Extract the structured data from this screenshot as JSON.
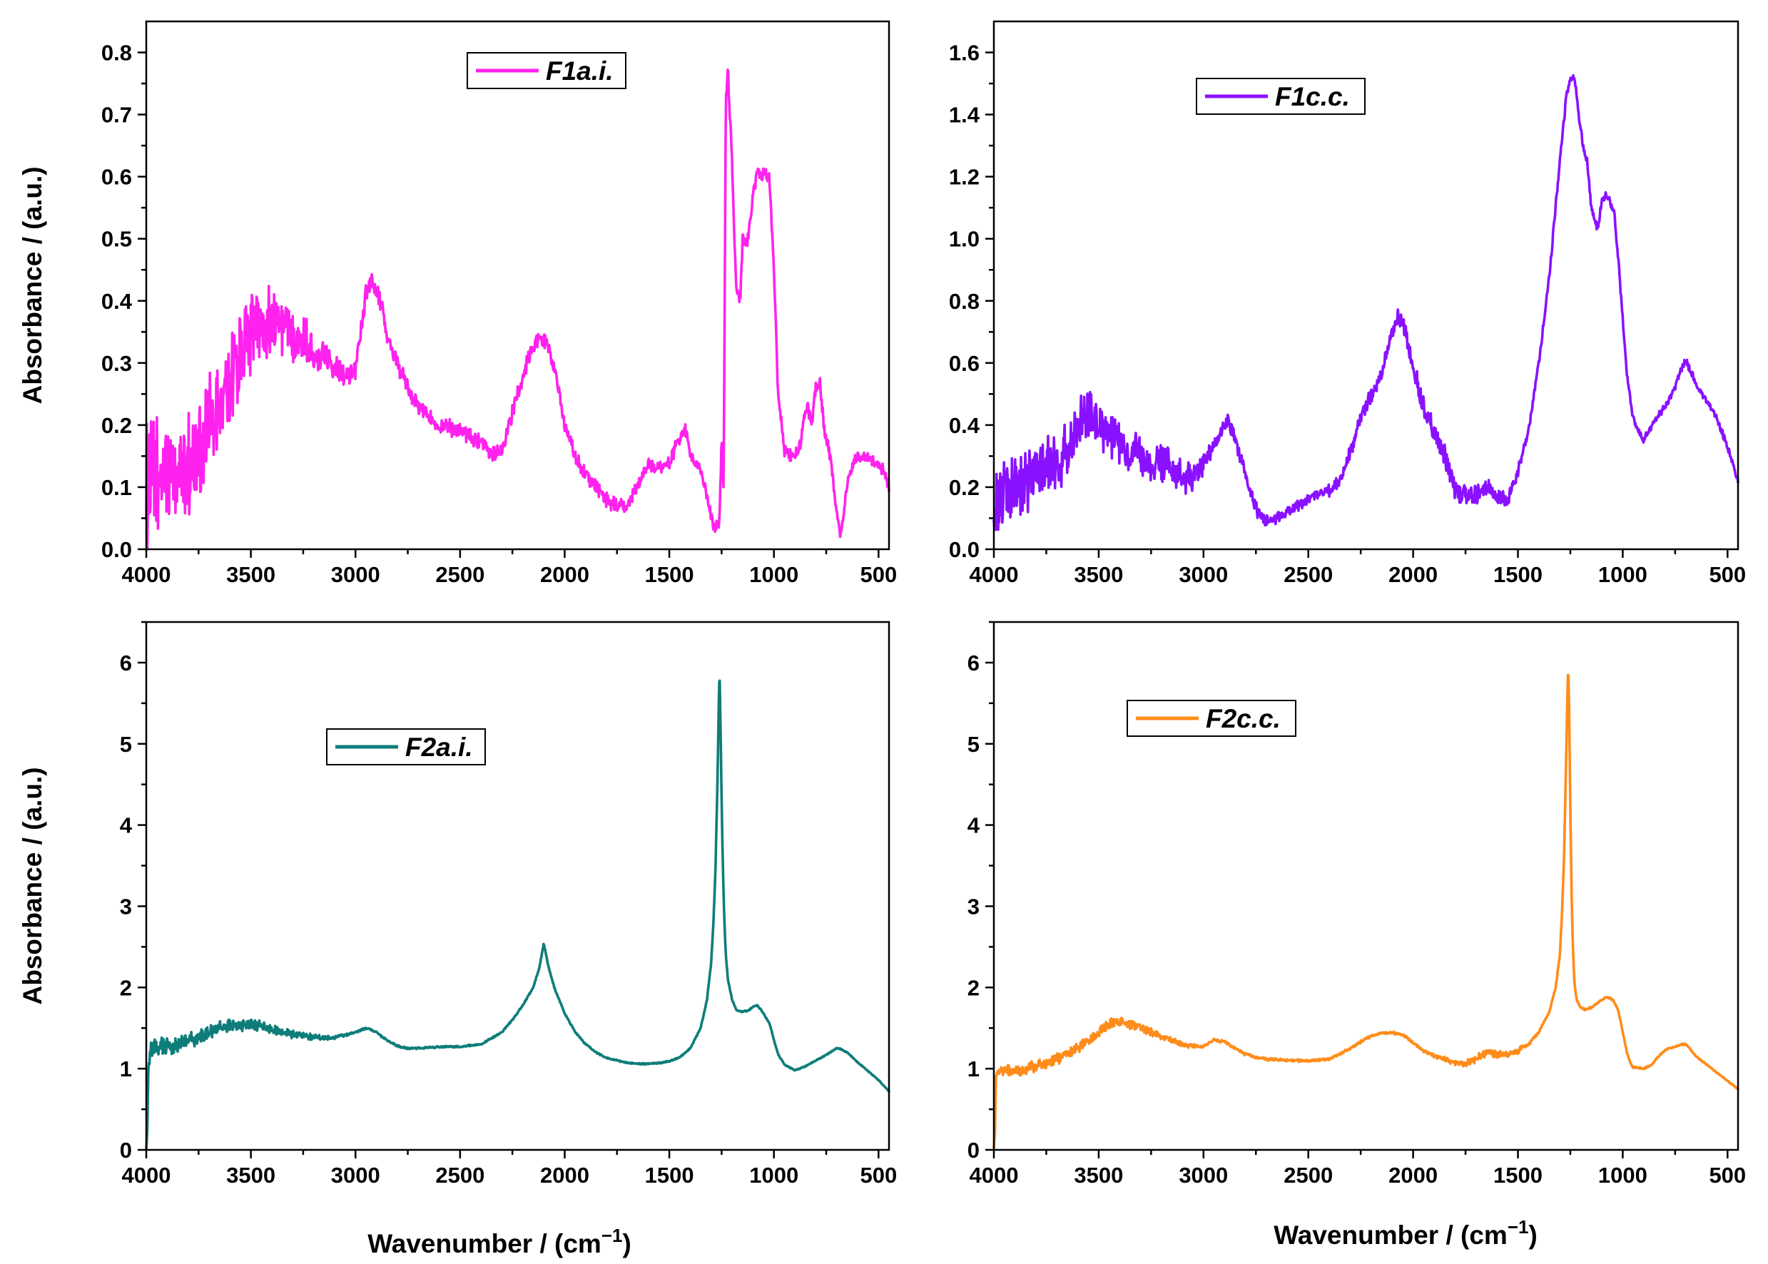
{
  "figure": {
    "shared_xlabel": "Wavenumber / (cm",
    "shared_xlabel_sup": "−1",
    "shared_xlabel_close": ")"
  },
  "chart_data": [
    {
      "type": "line",
      "legend": "F1a.i.",
      "legend_position": "top-center",
      "color": "#ff22ee",
      "ylabel": "Absorbance / (a.u.)",
      "xlabel": "",
      "xlim": [
        4000,
        450
      ],
      "ylim": [
        0,
        0.85
      ],
      "xticks": [
        4000,
        3500,
        3000,
        2500,
        2000,
        1500,
        1000,
        500
      ],
      "yticks": [
        0.0,
        0.1,
        0.2,
        0.3,
        0.4,
        0.5,
        0.6,
        0.7,
        0.8
      ],
      "ytick_labels": [
        "0.0",
        "0.1",
        "0.2",
        "0.3",
        "0.4",
        "0.5",
        "0.6",
        "0.7",
        "0.8"
      ],
      "noise": [
        [
          4000,
          0.08
        ],
        [
          3600,
          0.06
        ],
        [
          3200,
          0.025
        ],
        [
          3000,
          0.012
        ],
        [
          2400,
          0.01
        ],
        [
          450,
          0.008
        ]
      ],
      "series": [
        {
          "name": "F1a.i.",
          "x": [
            4000,
            3950,
            3900,
            3850,
            3800,
            3750,
            3700,
            3650,
            3600,
            3550,
            3500,
            3450,
            3400,
            3350,
            3300,
            3250,
            3200,
            3150,
            3100,
            3050,
            3000,
            2950,
            2920,
            2880,
            2850,
            2800,
            2750,
            2700,
            2600,
            2500,
            2400,
            2350,
            2300,
            2250,
            2200,
            2150,
            2120,
            2080,
            2050,
            2000,
            1950,
            1900,
            1850,
            1800,
            1750,
            1700,
            1650,
            1600,
            1550,
            1500,
            1450,
            1420,
            1400,
            1350,
            1300,
            1280,
            1260,
            1250,
            1240,
            1230,
            1220,
            1200,
            1180,
            1160,
            1150,
            1130,
            1100,
            1080,
            1060,
            1040,
            1020,
            1000,
            980,
            950,
            920,
            900,
            880,
            860,
            840,
            820,
            800,
            780,
            760,
            740,
            720,
            700,
            680,
            660,
            640,
            620,
            600,
            560,
            520,
            480,
            450
          ],
          "y": [
            0.1,
            0.11,
            0.12,
            0.12,
            0.13,
            0.16,
            0.19,
            0.22,
            0.27,
            0.32,
            0.35,
            0.36,
            0.37,
            0.36,
            0.35,
            0.34,
            0.32,
            0.31,
            0.3,
            0.28,
            0.29,
            0.41,
            0.43,
            0.4,
            0.34,
            0.3,
            0.26,
            0.23,
            0.2,
            0.19,
            0.17,
            0.15,
            0.16,
            0.22,
            0.28,
            0.33,
            0.34,
            0.33,
            0.29,
            0.2,
            0.15,
            0.12,
            0.1,
            0.08,
            0.07,
            0.07,
            0.1,
            0.14,
            0.13,
            0.14,
            0.18,
            0.19,
            0.15,
            0.13,
            0.05,
            0.03,
            0.05,
            0.18,
            0.1,
            0.72,
            0.77,
            0.62,
            0.42,
            0.4,
            0.5,
            0.49,
            0.57,
            0.61,
            0.6,
            0.61,
            0.59,
            0.45,
            0.25,
            0.16,
            0.15,
            0.15,
            0.16,
            0.2,
            0.23,
            0.2,
            0.26,
            0.27,
            0.19,
            0.17,
            0.12,
            0.06,
            0.02,
            0.08,
            0.12,
            0.14,
            0.15,
            0.15,
            0.14,
            0.13,
            0.1
          ]
        }
      ]
    },
    {
      "type": "line",
      "legend": "F1c.c.",
      "legend_position": "top-center",
      "color": "#8a11ff",
      "ylabel": "",
      "xlabel": "",
      "xlim": [
        4000,
        450
      ],
      "ylim": [
        0,
        1.7
      ],
      "xticks": [
        4000,
        3500,
        3000,
        2500,
        2000,
        1500,
        1000,
        500
      ],
      "yticks": [
        0.0,
        0.2,
        0.4,
        0.6,
        0.8,
        1.0,
        1.2,
        1.4,
        1.6
      ],
      "ytick_labels": [
        "0.0",
        "0.2",
        "0.4",
        "0.6",
        "0.8",
        "1.0",
        "1.2",
        "1.4",
        "1.6"
      ],
      "noise": [
        [
          4000,
          0.09
        ],
        [
          3550,
          0.07
        ],
        [
          3200,
          0.05
        ],
        [
          2950,
          0.02
        ],
        [
          2500,
          0.012
        ],
        [
          1800,
          0.03
        ],
        [
          1550,
          0.02
        ],
        [
          1450,
          0.01
        ],
        [
          450,
          0.008
        ]
      ],
      "series": [
        {
          "name": "F1c.c.",
          "x": [
            4000,
            3950,
            3900,
            3850,
            3800,
            3750,
            3700,
            3650,
            3600,
            3550,
            3500,
            3450,
            3400,
            3350,
            3300,
            3250,
            3200,
            3150,
            3100,
            3050,
            3000,
            2950,
            2920,
            2880,
            2850,
            2800,
            2750,
            2700,
            2650,
            2600,
            2550,
            2500,
            2450,
            2400,
            2350,
            2300,
            2250,
            2200,
            2150,
            2100,
            2070,
            2050,
            2000,
            1950,
            1900,
            1850,
            1800,
            1750,
            1700,
            1650,
            1600,
            1550,
            1500,
            1450,
            1400,
            1350,
            1300,
            1270,
            1250,
            1230,
            1210,
            1190,
            1170,
            1150,
            1120,
            1100,
            1080,
            1060,
            1040,
            1020,
            1000,
            980,
            950,
            920,
            900,
            880,
            850,
            800,
            750,
            720,
            700,
            680,
            650,
            600,
            550,
            500,
            450
          ],
          "y": [
            0.15,
            0.17,
            0.19,
            0.22,
            0.25,
            0.26,
            0.28,
            0.33,
            0.4,
            0.42,
            0.41,
            0.38,
            0.35,
            0.31,
            0.29,
            0.27,
            0.27,
            0.25,
            0.23,
            0.23,
            0.27,
            0.33,
            0.37,
            0.42,
            0.35,
            0.24,
            0.13,
            0.09,
            0.1,
            0.12,
            0.14,
            0.16,
            0.18,
            0.19,
            0.22,
            0.31,
            0.42,
            0.5,
            0.57,
            0.7,
            0.75,
            0.73,
            0.59,
            0.45,
            0.38,
            0.3,
            0.2,
            0.17,
            0.17,
            0.2,
            0.17,
            0.16,
            0.25,
            0.38,
            0.6,
            0.88,
            1.25,
            1.45,
            1.52,
            1.52,
            1.4,
            1.3,
            1.25,
            1.1,
            1.03,
            1.12,
            1.14,
            1.12,
            1.08,
            0.92,
            0.74,
            0.56,
            0.42,
            0.37,
            0.35,
            0.38,
            0.41,
            0.46,
            0.52,
            0.58,
            0.61,
            0.58,
            0.53,
            0.48,
            0.42,
            0.33,
            0.22
          ]
        }
      ]
    },
    {
      "type": "line",
      "legend": "F2a.i.",
      "legend_position": "top-left",
      "color": "#0e7d7a",
      "ylabel": "Absorbance / (a.u.)",
      "xlabel": "",
      "xlim": [
        4000,
        450
      ],
      "ylim": [
        0,
        6.5
      ],
      "xticks": [
        4000,
        3500,
        3000,
        2500,
        2000,
        1500,
        1000,
        500
      ],
      "yticks": [
        0,
        1,
        2,
        3,
        4,
        5,
        6
      ],
      "ytick_labels": [
        "0",
        "1",
        "2",
        "3",
        "4",
        "5",
        "6"
      ],
      "noise": [
        [
          4000,
          0.1
        ],
        [
          3700,
          0.07
        ],
        [
          3400,
          0.05
        ],
        [
          3200,
          0.03
        ],
        [
          3000,
          0.01
        ],
        [
          2400,
          0.008
        ],
        [
          450,
          0.005
        ]
      ],
      "series": [
        {
          "name": "F2a.i.",
          "x": [
            4000,
            3995,
            3990,
            3980,
            3950,
            3900,
            3850,
            3800,
            3750,
            3700,
            3650,
            3600,
            3550,
            3500,
            3450,
            3400,
            3300,
            3200,
            3100,
            3000,
            2950,
            2900,
            2850,
            2800,
            2750,
            2700,
            2600,
            2500,
            2400,
            2300,
            2250,
            2200,
            2150,
            2120,
            2100,
            2080,
            2050,
            2000,
            1950,
            1900,
            1850,
            1800,
            1750,
            1700,
            1650,
            1600,
            1550,
            1500,
            1450,
            1400,
            1350,
            1320,
            1300,
            1290,
            1280,
            1270,
            1265,
            1260,
            1255,
            1250,
            1245,
            1240,
            1235,
            1230,
            1220,
            1200,
            1180,
            1150,
            1120,
            1100,
            1080,
            1060,
            1050,
            1020,
            1000,
            980,
            950,
            900,
            850,
            800,
            750,
            720,
            700,
            680,
            650,
            600,
            550,
            500,
            450
          ],
          "y": [
            0.0,
            0.3,
            1.1,
            1.2,
            1.25,
            1.28,
            1.3,
            1.33,
            1.38,
            1.45,
            1.5,
            1.52,
            1.52,
            1.55,
            1.52,
            1.48,
            1.42,
            1.38,
            1.38,
            1.45,
            1.5,
            1.45,
            1.35,
            1.28,
            1.25,
            1.25,
            1.27,
            1.27,
            1.3,
            1.45,
            1.6,
            1.78,
            2.0,
            2.25,
            2.55,
            2.28,
            2.0,
            1.68,
            1.45,
            1.3,
            1.2,
            1.13,
            1.1,
            1.07,
            1.06,
            1.06,
            1.07,
            1.09,
            1.14,
            1.25,
            1.5,
            1.85,
            2.3,
            2.75,
            3.4,
            4.5,
            5.3,
            5.95,
            5.2,
            4.3,
            3.6,
            3.1,
            2.7,
            2.4,
            2.1,
            1.85,
            1.72,
            1.7,
            1.72,
            1.76,
            1.78,
            1.72,
            1.68,
            1.55,
            1.35,
            1.18,
            1.05,
            0.98,
            1.03,
            1.1,
            1.17,
            1.22,
            1.25,
            1.24,
            1.2,
            1.08,
            0.97,
            0.86,
            0.72
          ]
        }
      ]
    },
    {
      "type": "line",
      "legend": "F2c.c.",
      "legend_position": "top-center",
      "color": "#ff8c1a",
      "ylabel": "",
      "xlabel": "",
      "xlim": [
        4000,
        450
      ],
      "ylim": [
        0,
        6.5
      ],
      "xticks": [
        4000,
        3500,
        3000,
        2500,
        2000,
        1500,
        1000,
        500
      ],
      "yticks": [
        0,
        1,
        2,
        3,
        4,
        5,
        6
      ],
      "ytick_labels": [
        "0",
        "1",
        "2",
        "3",
        "4",
        "5",
        "6"
      ],
      "noise": [
        [
          4000,
          0.05
        ],
        [
          3600,
          0.06
        ],
        [
          3300,
          0.04
        ],
        [
          3000,
          0.015
        ],
        [
          2000,
          0.01
        ],
        [
          1700,
          0.04
        ],
        [
          1500,
          0.03
        ],
        [
          1400,
          0.01
        ],
        [
          450,
          0.006
        ]
      ],
      "series": [
        {
          "name": "F2c.c.",
          "x": [
            4000,
            3995,
            3990,
            3980,
            3950,
            3900,
            3850,
            3800,
            3750,
            3700,
            3650,
            3600,
            3550,
            3500,
            3450,
            3400,
            3350,
            3300,
            3250,
            3200,
            3150,
            3100,
            3050,
            3000,
            2950,
            2900,
            2850,
            2800,
            2750,
            2700,
            2600,
            2500,
            2400,
            2350,
            2300,
            2250,
            2200,
            2150,
            2100,
            2050,
            2000,
            1950,
            1900,
            1850,
            1800,
            1750,
            1700,
            1650,
            1600,
            1550,
            1500,
            1450,
            1400,
            1350,
            1320,
            1300,
            1290,
            1280,
            1270,
            1265,
            1260,
            1255,
            1250,
            1245,
            1240,
            1235,
            1230,
            1220,
            1200,
            1180,
            1150,
            1100,
            1080,
            1060,
            1050,
            1040,
            1020,
            1000,
            980,
            960,
            950,
            900,
            860,
            830,
            800,
            780,
            750,
            720,
            700,
            680,
            650,
            600,
            550,
            500,
            450
          ],
          "y": [
            0.0,
            0.2,
            0.9,
            0.95,
            0.97,
            0.98,
            1.0,
            1.03,
            1.07,
            1.12,
            1.18,
            1.25,
            1.35,
            1.45,
            1.55,
            1.58,
            1.55,
            1.5,
            1.45,
            1.4,
            1.35,
            1.3,
            1.28,
            1.27,
            1.35,
            1.33,
            1.25,
            1.18,
            1.14,
            1.12,
            1.1,
            1.1,
            1.12,
            1.18,
            1.25,
            1.33,
            1.4,
            1.44,
            1.44,
            1.42,
            1.32,
            1.22,
            1.16,
            1.12,
            1.08,
            1.06,
            1.12,
            1.2,
            1.18,
            1.18,
            1.22,
            1.3,
            1.45,
            1.7,
            2.0,
            2.4,
            2.9,
            3.6,
            4.8,
            5.5,
            6.0,
            5.3,
            4.2,
            3.3,
            2.7,
            2.3,
            2.05,
            1.85,
            1.75,
            1.73,
            1.75,
            1.85,
            1.88,
            1.87,
            1.85,
            1.82,
            1.7,
            1.45,
            1.2,
            1.05,
            1.02,
            1.0,
            1.05,
            1.15,
            1.22,
            1.25,
            1.27,
            1.3,
            1.3,
            1.25,
            1.15,
            1.05,
            0.95,
            0.85,
            0.75
          ]
        }
      ]
    }
  ]
}
